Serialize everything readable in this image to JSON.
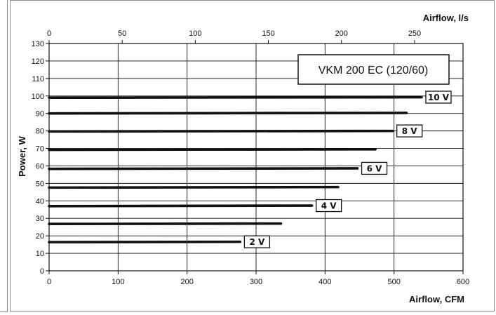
{
  "chart_data": {
    "type": "line",
    "title": "VKM 200 EC (120/60)",
    "xlabel": "Airflow, CFM",
    "ylabel": "Power, W",
    "x2label": "Airflow, l/s",
    "xlim": [
      0,
      600
    ],
    "ylim": [
      0,
      130
    ],
    "x2lim": [
      0,
      283.17
    ],
    "xticks": [
      0,
      100,
      200,
      300,
      400,
      500,
      600
    ],
    "yticks": [
      0,
      10,
      20,
      30,
      40,
      50,
      60,
      70,
      80,
      90,
      100,
      110,
      120,
      130
    ],
    "x2ticks": [
      0,
      50,
      100,
      150,
      200,
      250
    ],
    "grid": true,
    "series": [
      {
        "name": "10 V",
        "x": [
          0,
          540
        ],
        "y": [
          99,
          99.3
        ]
      },
      {
        "name": "",
        "x": [
          0,
          518
        ],
        "y": [
          90,
          90.3
        ]
      },
      {
        "name": "8 V",
        "x": [
          0,
          498
        ],
        "y": [
          79.7,
          80
        ]
      },
      {
        "name": "",
        "x": [
          0,
          473
        ],
        "y": [
          69.2,
          69.5
        ]
      },
      {
        "name": "6 V",
        "x": [
          0,
          447
        ],
        "y": [
          58.3,
          58.6
        ]
      },
      {
        "name": "",
        "x": [
          0,
          419
        ],
        "y": [
          47.6,
          47.9
        ]
      },
      {
        "name": "4 V",
        "x": [
          0,
          381
        ],
        "y": [
          37,
          37.3
        ]
      },
      {
        "name": "",
        "x": [
          0,
          336
        ],
        "y": [
          26.8,
          27
        ]
      },
      {
        "name": "2 V",
        "x": [
          0,
          277
        ],
        "y": [
          16.4,
          16.6
        ]
      }
    ]
  }
}
